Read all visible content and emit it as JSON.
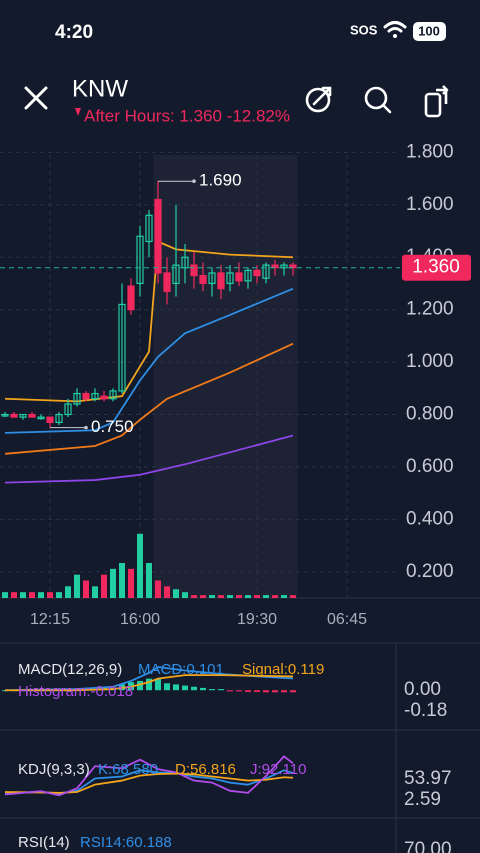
{
  "status_bar": {
    "time": "4:20",
    "carrier": "SOS",
    "battery": "100"
  },
  "header": {
    "symbol": "KNW",
    "session_quote": "After Hours: 1.360 -12.82%"
  },
  "price_chart": {
    "type": "candlestick",
    "ylim": [
      0.1,
      1.79
    ],
    "yticks": [
      {
        "value": 0.2,
        "label": "0.200"
      },
      {
        "value": 0.4,
        "label": "0.400"
      },
      {
        "value": 0.6,
        "label": "0.600"
      },
      {
        "value": 0.8,
        "label": "0.800"
      },
      {
        "value": 1.0,
        "label": "1.000"
      },
      {
        "value": 1.2,
        "label": "1.200"
      },
      {
        "value": 1.4,
        "label": "1.400"
      },
      {
        "value": 1.6,
        "label": "1.600"
      },
      {
        "value": 1.8,
        "label": "1.800"
      }
    ],
    "xticks": [
      {
        "value": 5,
        "label": "12:15"
      },
      {
        "value": 15,
        "label": "16:00"
      },
      {
        "value": 28,
        "label": "19:30"
      },
      {
        "value": 38,
        "label": "06:45"
      }
    ],
    "up_color": "#22cfa2",
    "down_color": "#f0285d",
    "open": [
      0.8,
      0.8,
      0.79,
      0.8,
      0.79,
      0.79,
      0.77,
      0.8,
      0.84,
      0.88,
      0.86,
      0.87,
      0.86,
      0.89,
      1.29,
      1.3,
      1.46,
      1.62,
      1.34,
      1.3,
      1.36,
      1.37,
      1.33,
      1.3,
      1.34,
      1.3,
      1.34,
      1.31,
      1.35,
      1.32,
      1.37,
      1.36,
      1.37
    ],
    "high": [
      0.81,
      0.81,
      0.8,
      0.81,
      0.8,
      0.79,
      0.81,
      0.86,
      0.9,
      0.89,
      0.9,
      0.89,
      0.9,
      1.3,
      1.32,
      1.52,
      1.58,
      1.69,
      1.4,
      1.6,
      1.45,
      1.42,
      1.38,
      1.36,
      1.37,
      1.37,
      1.38,
      1.36,
      1.37,
      1.38,
      1.39,
      1.38,
      1.38
    ],
    "low": [
      0.79,
      0.79,
      0.78,
      0.79,
      0.78,
      0.75,
      0.76,
      0.79,
      0.83,
      0.85,
      0.85,
      0.85,
      0.85,
      0.88,
      1.18,
      1.25,
      1.4,
      1.3,
      1.22,
      1.25,
      1.3,
      1.28,
      1.27,
      1.25,
      1.24,
      1.27,
      1.29,
      1.28,
      1.3,
      1.3,
      1.33,
      1.33,
      1.33
    ],
    "close": [
      0.8,
      0.79,
      0.8,
      0.79,
      0.79,
      0.77,
      0.8,
      0.84,
      0.88,
      0.86,
      0.88,
      0.86,
      0.89,
      1.22,
      1.2,
      1.48,
      1.56,
      1.34,
      1.27,
      1.37,
      1.4,
      1.33,
      1.3,
      1.34,
      1.28,
      1.34,
      1.31,
      1.35,
      1.33,
      1.37,
      1.36,
      1.37,
      1.36
    ],
    "after_hours_start": 17,
    "last_price": {
      "value": 1.36,
      "label": "1.360"
    },
    "annotations": [
      {
        "x": 17,
        "value": 1.69,
        "label": "1.690"
      },
      {
        "x": 5,
        "value": 0.75,
        "label": "0.750"
      }
    ],
    "moving_averages": [
      {
        "color": "#f2a51c",
        "x": [
          0,
          8,
          13,
          16,
          17,
          19,
          25,
          32
        ],
        "values": [
          0.86,
          0.85,
          0.87,
          1.04,
          1.46,
          1.43,
          1.41,
          1.4
        ]
      },
      {
        "color": "#2f8fe6",
        "x": [
          0,
          10,
          12,
          15,
          17,
          20,
          25,
          32
        ],
        "values": [
          0.73,
          0.74,
          0.77,
          0.93,
          1.02,
          1.11,
          1.18,
          1.28
        ]
      },
      {
        "color": "#f07a1a",
        "x": [
          0,
          10,
          13,
          15,
          18,
          25,
          32
        ],
        "values": [
          0.65,
          0.68,
          0.72,
          0.78,
          0.86,
          0.96,
          1.07
        ]
      },
      {
        "color": "#8e44e6",
        "x": [
          0,
          10,
          15,
          20,
          32
        ],
        "values": [
          0.54,
          0.55,
          0.57,
          0.61,
          0.72
        ]
      }
    ],
    "volume_lim": [
      0,
      12
    ],
    "volume": [
      1,
      1,
      1,
      1,
      1,
      1,
      1,
      2,
      4,
      3,
      2,
      4,
      5,
      6,
      5,
      11,
      6,
      3,
      2,
      1.5,
      1,
      0.5,
      0.5,
      0.5,
      0.5,
      0.5,
      0.5,
      0.5,
      0.5,
      0.5,
      0.5,
      0.5,
      0.5
    ]
  },
  "macd_panel": {
    "name": "MACD(12,26,9)",
    "macd_label": "MACD:0.101",
    "signal_label": "Signal:0.119",
    "histogram_label": "Histogram:-0.018",
    "ylim": [
      -0.3,
      0.39
    ],
    "yticks": [
      {
        "value": 0,
        "label": "0.00"
      },
      {
        "value": -0.18,
        "label": "-0.18"
      }
    ],
    "histogram": [
      0,
      0,
      0,
      0,
      0,
      0,
      0,
      0,
      0.01,
      0.01,
      0.01,
      0.02,
      0.02,
      0.05,
      0.07,
      0.08,
      0.1,
      0.1,
      0.06,
      0.05,
      0.04,
      0.03,
      0.02,
      0.01,
      0.01,
      -0.01,
      -0.01,
      -0.015,
      -0.015,
      -0.018,
      -0.018,
      -0.018,
      -0.018
    ],
    "lines": [
      {
        "color": "#2f8fe6",
        "x": [
          0,
          8,
          12,
          14,
          16,
          17,
          20,
          24,
          28,
          32
        ],
        "values": [
          0.0,
          0.01,
          0.03,
          0.08,
          0.15,
          0.2,
          0.17,
          0.14,
          0.12,
          0.101
        ]
      },
      {
        "color": "#f2a51c",
        "x": [
          0,
          8,
          12,
          14,
          16,
          17,
          20,
          24,
          28,
          32
        ],
        "values": [
          0.0,
          0.0,
          0.01,
          0.03,
          0.07,
          0.1,
          0.13,
          0.13,
          0.125,
          0.119
        ]
      }
    ]
  },
  "kdj_panel": {
    "name": "KDJ(9,3,3)",
    "k_label": "K:68.580",
    "d_label": "D:56.816",
    "j_label": "J:92.110",
    "ylim": [
      -34,
      166
    ],
    "yticks": [
      {
        "value": 53.97,
        "label": "53.97"
      },
      2.59
    ],
    "lines": [
      {
        "color": "#2f8fe6",
        "x": [
          0,
          4,
          6,
          8,
          10,
          13,
          15,
          17,
          19,
          21,
          23,
          25,
          27,
          29,
          31,
          32
        ],
        "values": [
          20,
          22,
          18,
          25,
          55,
          60,
          75,
          70,
          68,
          60,
          55,
          45,
          40,
          55,
          75,
          68.58
        ]
      },
      {
        "color": "#f2a51c",
        "x": [
          0,
          4,
          6,
          8,
          10,
          13,
          15,
          17,
          19,
          21,
          23,
          25,
          27,
          29,
          31,
          32
        ],
        "values": [
          22,
          21,
          20,
          22,
          40,
          50,
          62,
          66,
          67,
          65,
          60,
          55,
          50,
          52,
          58,
          56.816
        ]
      },
      {
        "color": "#b04dea",
        "x": [
          0,
          4,
          6,
          8,
          10,
          13,
          15,
          17,
          19,
          21,
          23,
          25,
          27,
          29,
          31,
          32
        ],
        "values": [
          16,
          24,
          14,
          31,
          85,
          80,
          101,
          78,
          70,
          50,
          45,
          25,
          20,
          61,
          109,
          92.11
        ]
      }
    ]
  },
  "rsi_panel": {
    "name": "RSI(14)",
    "rsi_label": "RSI14:60.188",
    "ytick": "70.00"
  }
}
